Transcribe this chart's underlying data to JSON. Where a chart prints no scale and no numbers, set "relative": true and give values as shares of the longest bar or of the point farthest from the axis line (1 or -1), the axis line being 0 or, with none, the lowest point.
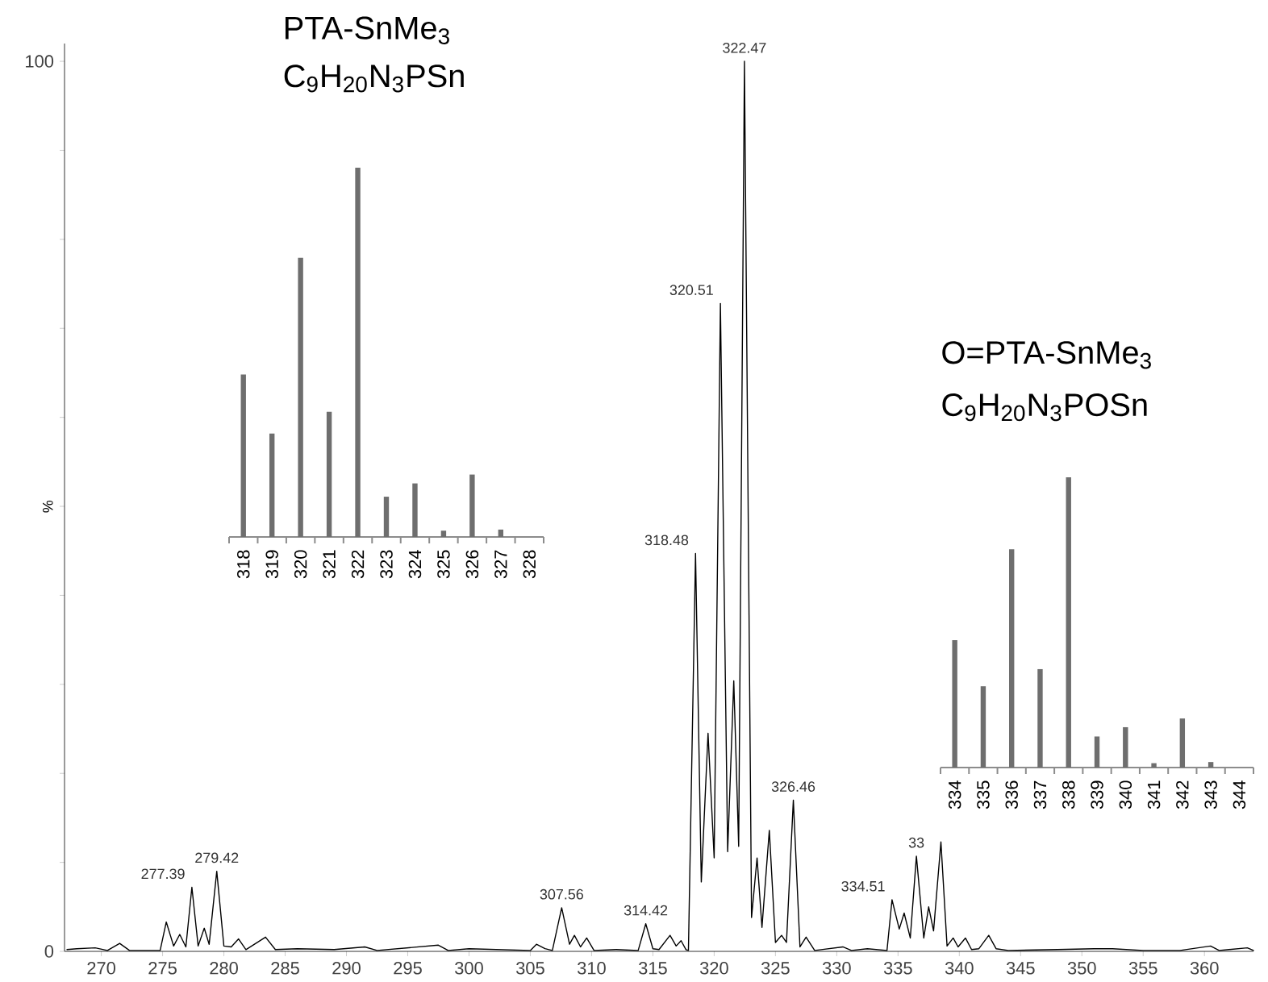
{
  "chart_data": [
    {
      "type": "line",
      "ylabel": "%",
      "xlim": [
        267,
        364
      ],
      "ylim": [
        0,
        102
      ],
      "xticks": [
        270,
        275,
        280,
        285,
        290,
        295,
        300,
        305,
        310,
        315,
        320,
        325,
        330,
        335,
        340,
        345,
        350,
        355,
        360
      ],
      "yticks": [
        0,
        {
          "value": 10,
          "label": null
        },
        {
          "value": 20,
          "label": null
        },
        {
          "value": 30,
          "label": null
        },
        {
          "value": 40,
          "label": null
        },
        {
          "value": 50,
          "label": null
        },
        {
          "value": 60,
          "label": null
        },
        {
          "value": 70,
          "label": null
        },
        {
          "value": 80,
          "label": null
        },
        {
          "value": 90,
          "label": null
        },
        100
      ],
      "series": [
        {
          "color": "#000000",
          "x": [
            267.2,
            268,
            269.5,
            270.5,
            271.5,
            272.3,
            274.8,
            275.3,
            275.9,
            276.4,
            276.9,
            277.39,
            277.9,
            278.4,
            278.8,
            279.42,
            280,
            280.6,
            281.2,
            281.8,
            283.4,
            284.2,
            286,
            289,
            291.5,
            292.5,
            297.5,
            298.3,
            300,
            305,
            305.5,
            306.2,
            306.8,
            307.56,
            308.2,
            308.6,
            309.1,
            309.6,
            310.2,
            312,
            313.8,
            314.42,
            315,
            315.5,
            316.4,
            316.9,
            317.3,
            317.7,
            317.9,
            318.48,
            318.95,
            319.5,
            320,
            320.51,
            321.1,
            321.6,
            322.0,
            322.47,
            323.05,
            323.5,
            323.9,
            324.5,
            325,
            325.5,
            325.9,
            326.46,
            327.0,
            327.5,
            328.2,
            330.5,
            331.2,
            332.5,
            334.1,
            334.51,
            335.1,
            335.5,
            336,
            336.5,
            337.1,
            337.5,
            337.9,
            338.5,
            339,
            339.5,
            339.9,
            340.5,
            341,
            341.6,
            342.4,
            343,
            344,
            348,
            351,
            352.5,
            355,
            358,
            360.5,
            361.2,
            363.5,
            364
          ],
          "values": [
            0.2,
            0.3,
            0.4,
            0.1,
            0.9,
            0.1,
            0.1,
            3.3,
            0.6,
            1.9,
            0.5,
            7.2,
            0.6,
            2.6,
            0.8,
            9.0,
            0.6,
            0.5,
            1.4,
            0.2,
            1.6,
            0.2,
            0.3,
            0.2,
            0.5,
            0.1,
            0.7,
            0.1,
            0.3,
            0.1,
            0.8,
            0.3,
            0.1,
            4.9,
            0.8,
            1.8,
            0.5,
            1.5,
            0.1,
            0.2,
            0.1,
            3.1,
            0.3,
            0.2,
            1.8,
            0.6,
            1.2,
            0.2,
            0.1,
            44.7,
            7.8,
            24.5,
            10.5,
            72.8,
            11.2,
            30.4,
            11.8,
            100,
            3.8,
            10.5,
            2.7,
            13.6,
            1,
            1.8,
            1,
            17,
            0.5,
            1.6,
            0.1,
            0.5,
            0.1,
            0.3,
            0.1,
            5.8,
            2.5,
            4.3,
            1.5,
            10.7,
            1.5,
            5,
            2.3,
            12.3,
            0.6,
            1.5,
            0.5,
            1.5,
            0.2,
            0.3,
            1.8,
            0.3,
            0.1,
            0.2,
            0.3,
            0.3,
            0.1,
            0.1,
            0.6,
            0.1,
            0.4,
            0.1
          ]
        }
      ],
      "annotations": [
        {
          "text": "277.39",
          "x": 277.39,
          "y": 7.2
        },
        {
          "text": "279.42",
          "x": 279.42,
          "y": 9.0
        },
        {
          "text": "307.56",
          "x": 307.56,
          "y": 4.9
        },
        {
          "text": "314.42",
          "x": 314.42,
          "y": 3.1
        },
        {
          "text": "318.48",
          "x": 318.48,
          "y": 44.7
        },
        {
          "text": "320.51",
          "x": 320.51,
          "y": 72.8
        },
        {
          "text": "322.47",
          "x": 322.47,
          "y": 100
        },
        {
          "text": "326.46",
          "x": 326.46,
          "y": 17
        },
        {
          "text": "334.51",
          "x": 334.51,
          "y": 5.8
        },
        {
          "text": "33",
          "x": 336.5,
          "y": 10.7
        }
      ]
    },
    {
      "type": "bar",
      "relative": true,
      "title": "PTA-SnMe$_{3}$",
      "subtitle": "C$_{9}$H$_{20}$N$_{3}$PSn",
      "categories": [
        "318",
        "319",
        "320",
        "321",
        "322",
        "323",
        "324",
        "325",
        "326",
        "327",
        "328"
      ],
      "values": [
        0.44,
        0.28,
        0.756,
        0.339,
        1,
        0.109,
        0.145,
        0.017,
        0.169,
        0.02,
        0
      ],
      "color": "#6e6e6e"
    },
    {
      "type": "bar",
      "relative": true,
      "title": "O=PTA-SnMe$_{3}$",
      "subtitle": "C$_{9}$H$_{20}$N$_{3}$POSn",
      "categories": [
        "334",
        "335",
        "336",
        "337",
        "338",
        "339",
        "340",
        "341",
        "342",
        "343",
        "344"
      ],
      "values": [
        0.439,
        0.28,
        0.752,
        0.339,
        1,
        0.107,
        0.139,
        0.015,
        0.169,
        0.019,
        0
      ],
      "color": "#6e6e6e"
    }
  ]
}
